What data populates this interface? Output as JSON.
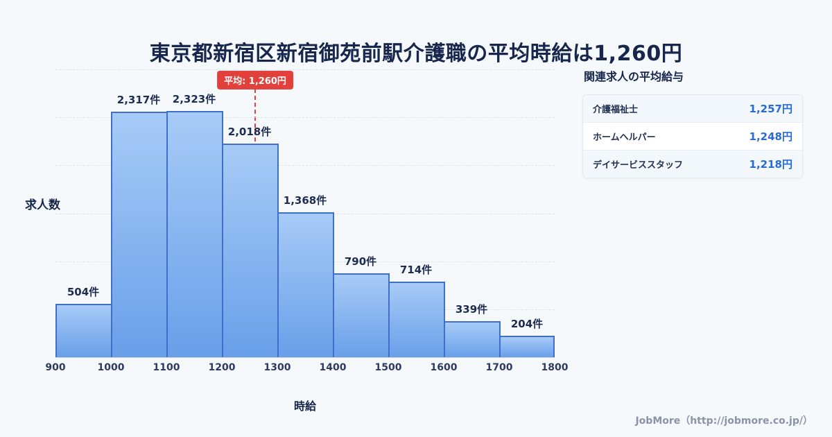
{
  "title": "東京都新宿区新宿御苑前駅介護職の平均時給は1,260円",
  "chart_data": {
    "type": "bar",
    "bin_edges": [
      900,
      1000,
      1100,
      1200,
      1300,
      1400,
      1500,
      1600,
      1700,
      1800
    ],
    "categories": [
      "900-1000",
      "1000-1100",
      "1100-1200",
      "1200-1300",
      "1300-1400",
      "1400-1500",
      "1500-1600",
      "1600-1700",
      "1700-1800"
    ],
    "values": [
      504,
      2317,
      2323,
      2018,
      1368,
      790,
      714,
      339,
      204
    ],
    "bar_labels": [
      "504件",
      "2,317件",
      "2,323件",
      "2,018件",
      "1,368件",
      "790件",
      "714件",
      "339件",
      "204件"
    ],
    "x_ticks": [
      "900",
      "1000",
      "1100",
      "1200",
      "1300",
      "1400",
      "1500",
      "1600",
      "1700",
      "1800"
    ],
    "xlabel": "時給",
    "ylabel": "求人数",
    "average": {
      "value": 1260,
      "label": "平均: 1,260円"
    },
    "grid": true,
    "legend": "none"
  },
  "side_panel": {
    "heading": "関連求人の平均給与",
    "rows": [
      {
        "label": "介護福祉士",
        "value": "1,257円"
      },
      {
        "label": "ホームヘルパー",
        "value": "1,248円"
      },
      {
        "label": "デイサービススタッフ",
        "value": "1,218円"
      }
    ]
  },
  "footer": {
    "credit": "JobMore（http://jobmore.co.jp/）"
  },
  "colors": {
    "background": "#f6f9fc",
    "title_navy": "#17264d",
    "bar_top": "#a7cbf7",
    "bar_bottom": "#699fe9",
    "bar_border": "#3f6fc8",
    "average_red": "#e2403b",
    "value_blue": "#2a6ad6"
  }
}
